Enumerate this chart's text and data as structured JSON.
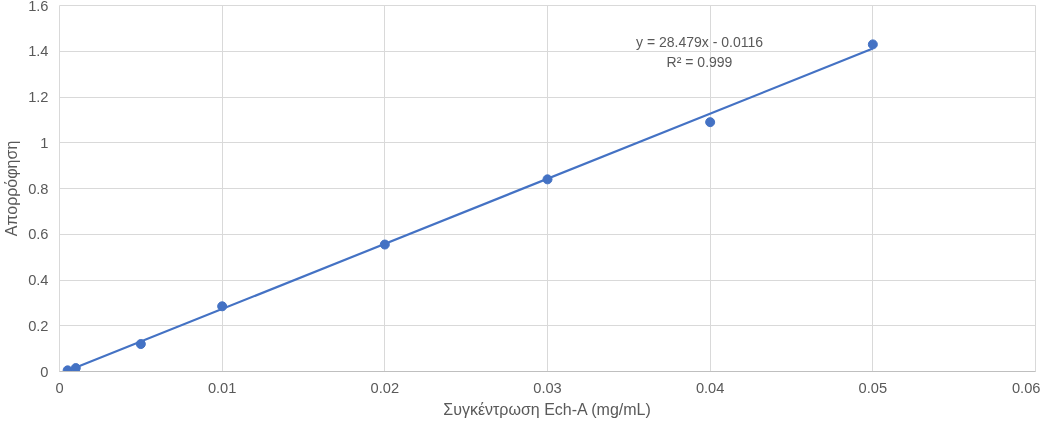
{
  "chart_data": {
    "type": "scatter",
    "xlabel": "Συγκέντρωση Ech-A (mg/mL)",
    "ylabel": "Απορρόφηση",
    "xlim": [
      0,
      0.06
    ],
    "xticks": [
      0,
      0.01,
      0.02,
      0.03,
      0.04,
      0.05,
      0.06
    ],
    "ylim": [
      0,
      1.6
    ],
    "yticks": [
      0,
      0.2,
      0.4,
      0.6,
      0.8,
      1,
      1.2,
      1.4,
      1.6
    ],
    "grid": true,
    "series": [
      {
        "marker": "circle",
        "color": "#4472c4",
        "x": [
          0.0005,
          0.001,
          0.005,
          0.01,
          0.02,
          0.03,
          0.04,
          0.05
        ],
        "values": [
          0.005,
          0.015,
          0.12,
          0.285,
          0.555,
          0.84,
          1.09,
          1.43
        ]
      },
      {
        "type": "line",
        "color": "#4472c4",
        "x": [
          0.0005,
          0.05
        ],
        "values": [
          0.003,
          1.412
        ]
      }
    ],
    "annotations": [
      "y = 28.479x - 0.0116",
      "R² = 0.999"
    ]
  }
}
